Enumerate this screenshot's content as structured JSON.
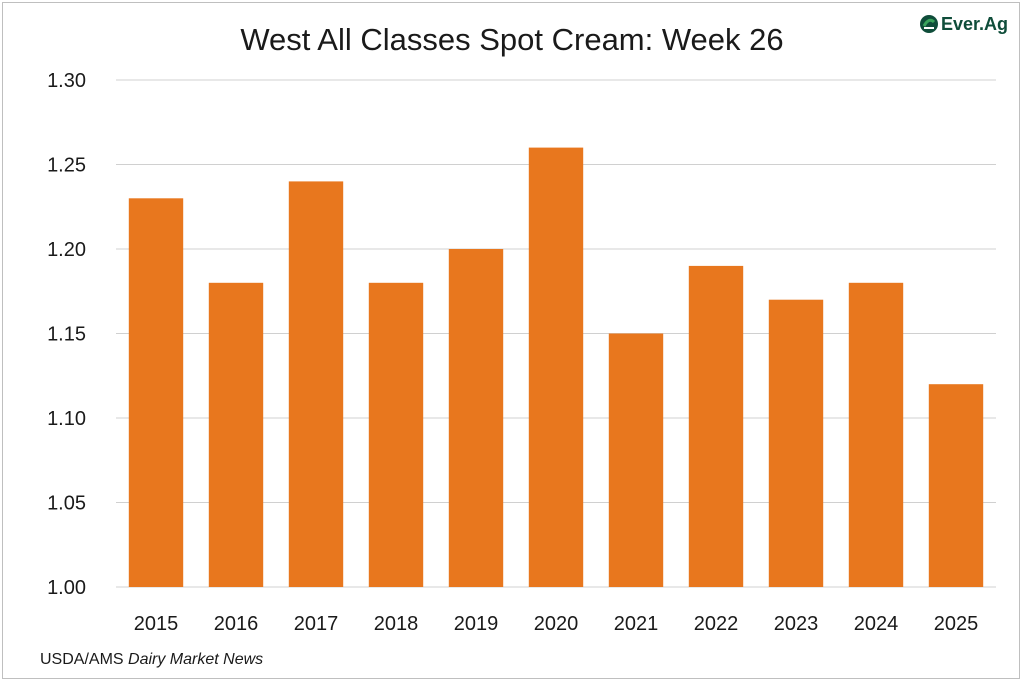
{
  "header": {
    "title": "West All Classes Spot Cream: Week 26",
    "brand": "Ever.Ag"
  },
  "footer": {
    "source_prefix": "USDA/AMS ",
    "source_publication": "Dairy Market News"
  },
  "colors": {
    "bar": "#E8771E",
    "grid": "#d0d0d0",
    "brand": "#0f4d3a",
    "brand_accent": "#3aa35c"
  },
  "icons": {
    "logo": "ever-ag-logo-icon"
  },
  "chart_data": {
    "type": "bar",
    "title": "West All Classes Spot Cream: Week 26",
    "xlabel": "",
    "ylabel": "",
    "categories": [
      "2015",
      "2016",
      "2017",
      "2018",
      "2019",
      "2020",
      "2021",
      "2022",
      "2023",
      "2024",
      "2025"
    ],
    "values": [
      1.23,
      1.18,
      1.24,
      1.18,
      1.2,
      1.26,
      1.15,
      1.19,
      1.17,
      1.18,
      1.12
    ],
    "ylim": [
      1.0,
      1.3
    ],
    "yticks": [
      "1.00",
      "1.05",
      "1.10",
      "1.15",
      "1.20",
      "1.25",
      "1.30"
    ],
    "grid": true,
    "legend": "none"
  }
}
